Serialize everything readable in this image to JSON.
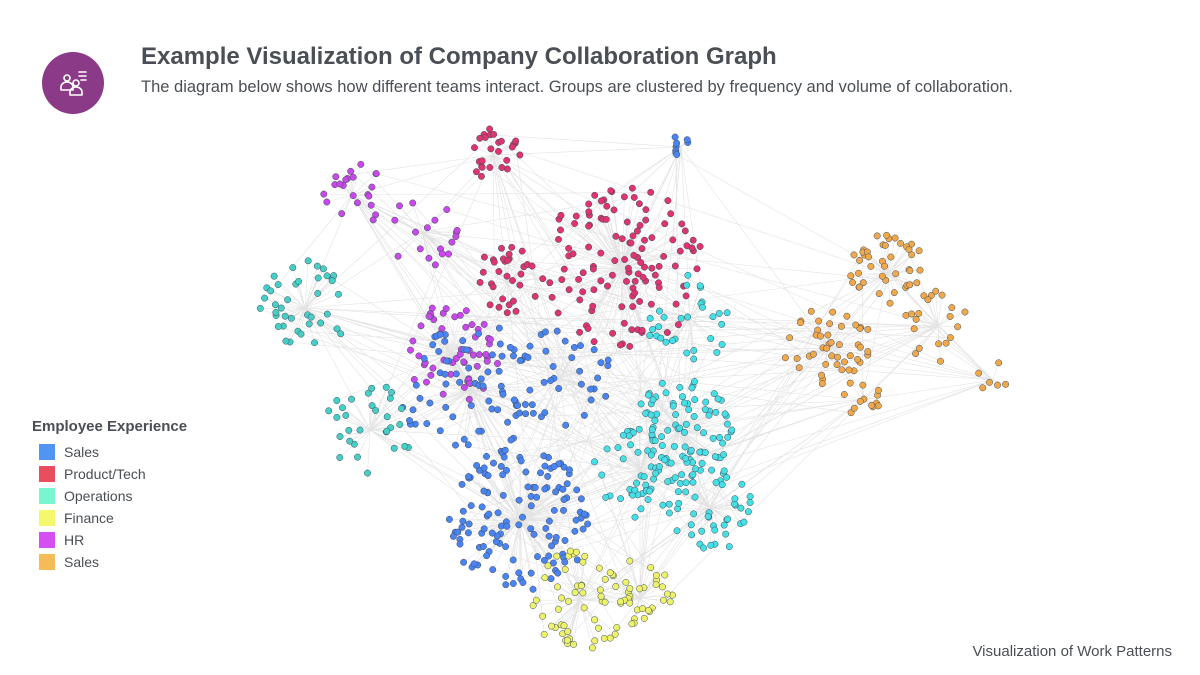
{
  "header": {
    "logo_icon": "people-collaboration-icon",
    "title": "Example Visualization of Company Collaboration Graph",
    "subtitle": "The diagram below shows how different teams interact. Groups are clustered by frequency and volume of collaboration."
  },
  "legend": {
    "title": "Employee Experience",
    "items": [
      {
        "label": "Sales",
        "color": "#5094f4"
      },
      {
        "label": "Product/Tech",
        "color": "#ea4d5c"
      },
      {
        "label": "Operations",
        "color": "#7af5d2"
      },
      {
        "label": "Finance",
        "color": "#f5f86a"
      },
      {
        "label": "HR",
        "color": "#d64ef2"
      },
      {
        "label": "Sales",
        "color": "#f5bb58"
      }
    ]
  },
  "node_colors": {
    "blue": "#4a84f2",
    "crimson": "#de3470",
    "teal": "#45cfc6",
    "cyan": "#45dfe6",
    "yellow": "#eef26a",
    "purple": "#c848ea",
    "orange": "#f1a84a"
  },
  "footer": {
    "text": "Visualization of Work Patterns"
  }
}
